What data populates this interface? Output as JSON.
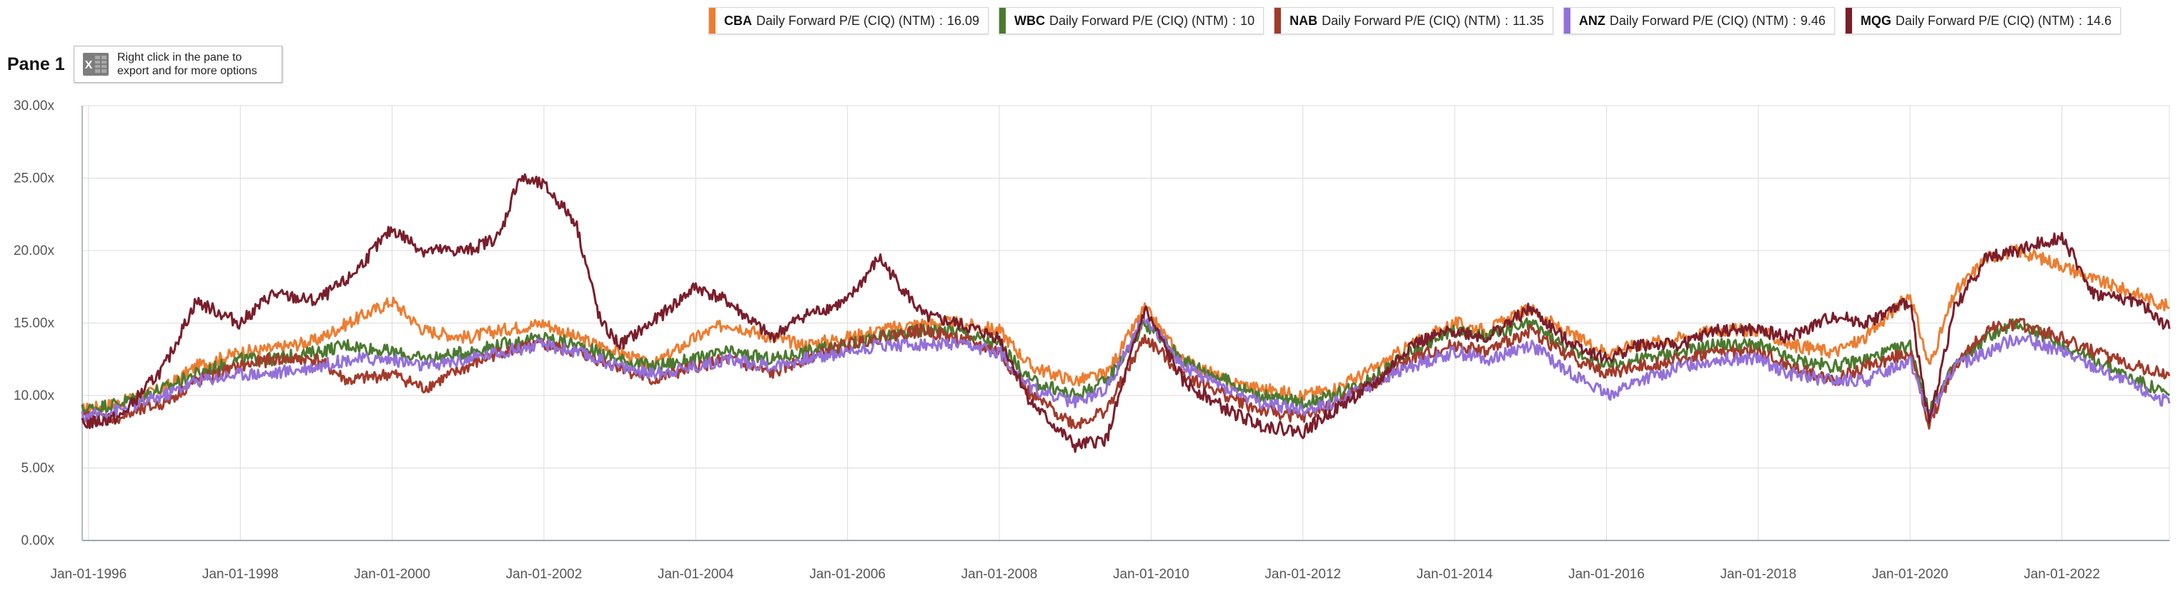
{
  "pane": {
    "title": "Pane 1",
    "export_hint_line1": "Right click in the pane to",
    "export_hint_line2": "export and for more options"
  },
  "legend": [
    {
      "code": "CBA",
      "desc": "Daily Forward P/E (CIQ) (NTM)",
      "value": "16.09",
      "color": "#ED7D31"
    },
    {
      "code": "WBC",
      "desc": "Daily Forward P/E (CIQ) (NTM)",
      "value": "10",
      "color": "#4A7A2E"
    },
    {
      "code": "NAB",
      "desc": "Daily Forward P/E (CIQ) (NTM)",
      "value": "11.35",
      "color": "#A33A2A"
    },
    {
      "code": "ANZ",
      "desc": "Daily Forward P/E (CIQ) (NTM)",
      "value": "9.46",
      "color": "#9370DB"
    },
    {
      "code": "MQG",
      "desc": "Daily Forward P/E (CIQ) (NTM)",
      "value": "14.6",
      "color": "#7A1E2B"
    }
  ],
  "chart_data": {
    "type": "line",
    "title": "",
    "xlabel": "",
    "ylabel": "",
    "ylim": [
      0,
      30
    ],
    "yticks": [
      "0.00x",
      "5.00x",
      "10.00x",
      "15.00x",
      "20.00x",
      "25.00x",
      "30.00x"
    ],
    "xticks": [
      "Jan-01-1996",
      "Jan-01-1998",
      "Jan-01-2000",
      "Jan-01-2002",
      "Jan-01-2004",
      "Jan-01-2006",
      "Jan-01-2008",
      "Jan-01-2010",
      "Jan-01-2012",
      "Jan-01-2014",
      "Jan-01-2016",
      "Jan-01-2018",
      "Jan-01-2020",
      "Jan-01-2022"
    ],
    "xlim": [
      "1995-12",
      "2023-06"
    ],
    "grid": true,
    "legend_position": "top-right",
    "series": [
      {
        "name": "CBA",
        "color": "#ED7D31",
        "x": [
          "1995-12",
          "1996-06",
          "1997-01",
          "1997-06",
          "1998-01",
          "1998-06",
          "1999-01",
          "1999-06",
          "2000-01",
          "2000-06",
          "2001-01",
          "2001-06",
          "2002-01",
          "2002-06",
          "2003-01",
          "2003-06",
          "2004-01",
          "2004-06",
          "2005-01",
          "2005-06",
          "2006-01",
          "2006-06",
          "2007-01",
          "2007-06",
          "2008-01",
          "2008-06",
          "2009-01",
          "2009-06",
          "2009-12",
          "2010-06",
          "2011-01",
          "2011-06",
          "2012-01",
          "2012-06",
          "2013-01",
          "2013-06",
          "2014-01",
          "2014-06",
          "2015-01",
          "2015-06",
          "2016-01",
          "2016-06",
          "2017-01",
          "2017-06",
          "2018-01",
          "2018-06",
          "2019-01",
          "2019-06",
          "2020-01",
          "2020-04",
          "2020-08",
          "2021-01",
          "2021-06",
          "2022-01",
          "2022-06",
          "2023-01",
          "2023-06"
        ],
        "y": [
          9.0,
          9.5,
          10.5,
          12.0,
          13.0,
          13.2,
          13.8,
          15.0,
          16.5,
          14.5,
          14.0,
          14.5,
          15.0,
          14.0,
          13.0,
          12.0,
          14.0,
          15.0,
          14.0,
          13.5,
          14.0,
          14.5,
          15.0,
          15.0,
          14.5,
          12.0,
          11.0,
          11.5,
          16.0,
          12.5,
          11.0,
          10.5,
          10.0,
          10.5,
          12.0,
          13.5,
          15.0,
          14.5,
          16.0,
          14.5,
          13.0,
          13.5,
          14.0,
          14.5,
          14.5,
          13.5,
          13.0,
          14.0,
          17.0,
          12.0,
          17.0,
          19.5,
          20.0,
          19.0,
          18.0,
          17.0,
          16.09
        ]
      },
      {
        "name": "WBC",
        "color": "#4A7A2E",
        "x": [
          "1995-12",
          "1996-06",
          "1997-01",
          "1997-06",
          "1998-01",
          "1998-06",
          "1999-01",
          "1999-06",
          "2000-01",
          "2000-06",
          "2001-01",
          "2001-06",
          "2002-01",
          "2002-06",
          "2003-01",
          "2003-06",
          "2004-01",
          "2004-06",
          "2005-01",
          "2005-06",
          "2006-01",
          "2006-06",
          "2007-01",
          "2007-06",
          "2008-01",
          "2008-06",
          "2009-01",
          "2009-06",
          "2009-12",
          "2010-06",
          "2011-01",
          "2011-06",
          "2012-01",
          "2012-06",
          "2013-01",
          "2013-06",
          "2014-01",
          "2014-06",
          "2015-01",
          "2015-06",
          "2016-01",
          "2016-06",
          "2017-01",
          "2017-06",
          "2018-01",
          "2018-06",
          "2019-01",
          "2019-06",
          "2020-01",
          "2020-04",
          "2020-08",
          "2021-01",
          "2021-06",
          "2022-01",
          "2022-06",
          "2023-01",
          "2023-06"
        ],
        "y": [
          9.0,
          9.5,
          10.5,
          11.5,
          12.5,
          12.5,
          13.0,
          13.5,
          13.0,
          12.5,
          13.0,
          13.5,
          14.0,
          13.5,
          12.5,
          12.0,
          12.5,
          13.0,
          12.5,
          13.0,
          13.5,
          14.0,
          14.5,
          14.5,
          13.5,
          11.0,
          10.0,
          11.0,
          15.0,
          12.5,
          11.0,
          10.0,
          9.5,
          10.0,
          11.5,
          13.0,
          14.5,
          14.0,
          15.0,
          13.5,
          12.0,
          12.5,
          13.0,
          13.5,
          13.5,
          12.5,
          12.0,
          12.5,
          13.5,
          9.0,
          12.0,
          14.0,
          15.0,
          13.5,
          12.5,
          11.0,
          10.0
        ]
      },
      {
        "name": "NAB",
        "color": "#A33A2A",
        "x": [
          "1995-12",
          "1996-06",
          "1997-01",
          "1997-06",
          "1998-01",
          "1998-06",
          "1999-01",
          "1999-06",
          "2000-01",
          "2000-06",
          "2001-01",
          "2001-06",
          "2002-01",
          "2002-06",
          "2003-01",
          "2003-06",
          "2004-01",
          "2004-06",
          "2005-01",
          "2005-06",
          "2006-01",
          "2006-06",
          "2007-01",
          "2007-06",
          "2008-01",
          "2008-06",
          "2009-01",
          "2009-06",
          "2009-12",
          "2010-06",
          "2011-01",
          "2011-06",
          "2012-01",
          "2012-06",
          "2013-01",
          "2013-06",
          "2014-01",
          "2014-06",
          "2015-01",
          "2015-06",
          "2016-01",
          "2016-06",
          "2017-01",
          "2017-06",
          "2018-01",
          "2018-06",
          "2019-01",
          "2019-06",
          "2020-01",
          "2020-04",
          "2020-08",
          "2021-01",
          "2021-06",
          "2022-01",
          "2022-06",
          "2023-01",
          "2023-06"
        ],
        "y": [
          8.5,
          8.5,
          9.5,
          11.0,
          12.0,
          12.5,
          12.5,
          11.0,
          11.5,
          10.5,
          12.0,
          13.0,
          13.5,
          13.0,
          12.0,
          11.0,
          12.0,
          12.5,
          11.5,
          12.5,
          13.5,
          14.0,
          14.5,
          14.0,
          13.0,
          10.0,
          8.0,
          9.0,
          14.0,
          11.5,
          10.0,
          9.0,
          8.5,
          9.5,
          11.0,
          12.5,
          13.5,
          13.0,
          14.5,
          13.0,
          11.5,
          12.0,
          12.5,
          13.0,
          13.0,
          12.0,
          11.0,
          12.0,
          13.0,
          8.0,
          12.0,
          14.5,
          15.0,
          14.0,
          13.0,
          12.0,
          11.35
        ]
      },
      {
        "name": "ANZ",
        "color": "#9370DB",
        "x": [
          "1995-12",
          "1996-06",
          "1997-01",
          "1997-06",
          "1998-01",
          "1998-06",
          "1999-01",
          "1999-06",
          "2000-01",
          "2000-06",
          "2001-01",
          "2001-06",
          "2002-01",
          "2002-06",
          "2003-01",
          "2003-06",
          "2004-01",
          "2004-06",
          "2005-01",
          "2005-06",
          "2006-01",
          "2006-06",
          "2007-01",
          "2007-06",
          "2008-01",
          "2008-06",
          "2009-01",
          "2009-06",
          "2009-12",
          "2010-06",
          "2011-01",
          "2011-06",
          "2012-01",
          "2012-06",
          "2013-01",
          "2013-06",
          "2014-01",
          "2014-06",
          "2015-01",
          "2015-06",
          "2016-01",
          "2016-06",
          "2017-01",
          "2017-06",
          "2018-01",
          "2018-06",
          "2019-01",
          "2019-06",
          "2020-01",
          "2020-04",
          "2020-08",
          "2021-01",
          "2021-06",
          "2022-01",
          "2022-06",
          "2023-01",
          "2023-06"
        ],
        "y": [
          8.5,
          9.0,
          10.0,
          11.0,
          11.5,
          11.5,
          12.0,
          12.5,
          12.5,
          12.0,
          12.5,
          13.0,
          13.5,
          13.0,
          12.0,
          11.5,
          12.0,
          12.5,
          12.0,
          12.5,
          13.0,
          13.5,
          13.5,
          13.5,
          13.0,
          10.5,
          9.5,
          10.5,
          15.5,
          12.0,
          10.5,
          9.5,
          9.0,
          9.5,
          11.0,
          12.0,
          13.0,
          12.5,
          13.5,
          12.0,
          10.0,
          11.0,
          12.0,
          12.5,
          12.5,
          11.5,
          11.0,
          11.0,
          12.5,
          8.5,
          12.0,
          13.0,
          14.0,
          13.0,
          12.0,
          10.5,
          9.46
        ]
      },
      {
        "name": "MQG",
        "color": "#7A1E2B",
        "x": [
          "1995-12",
          "1996-06",
          "1997-01",
          "1997-06",
          "1998-01",
          "1998-06",
          "1999-01",
          "1999-06",
          "2000-01",
          "2000-06",
          "2001-01",
          "2001-06",
          "2001-09",
          "2002-01",
          "2002-06",
          "2002-10",
          "2003-01",
          "2003-06",
          "2004-01",
          "2004-06",
          "2005-01",
          "2005-06",
          "2006-01",
          "2006-06",
          "2007-01",
          "2007-06",
          "2008-01",
          "2008-06",
          "2009-01",
          "2009-06",
          "2009-12",
          "2010-06",
          "2011-01",
          "2011-06",
          "2012-01",
          "2012-06",
          "2013-01",
          "2013-06",
          "2014-01",
          "2014-06",
          "2015-01",
          "2015-06",
          "2016-01",
          "2016-06",
          "2017-01",
          "2017-06",
          "2018-01",
          "2018-06",
          "2019-01",
          "2019-06",
          "2020-01",
          "2020-04",
          "2020-08",
          "2021-01",
          "2021-06",
          "2022-01",
          "2022-06",
          "2023-01",
          "2023-06"
        ],
        "y": [
          8.0,
          8.5,
          12.0,
          16.5,
          15.0,
          17.0,
          16.5,
          18.0,
          21.5,
          20.0,
          20.0,
          21.0,
          25.0,
          24.5,
          22.0,
          15.0,
          13.5,
          15.0,
          17.5,
          16.5,
          14.0,
          15.5,
          16.5,
          19.5,
          15.5,
          15.0,
          14.0,
          9.5,
          6.5,
          7.0,
          16.0,
          11.0,
          9.0,
          8.0,
          7.5,
          9.0,
          11.0,
          13.5,
          14.5,
          14.0,
          16.0,
          14.0,
          12.5,
          13.5,
          13.5,
          14.5,
          14.5,
          14.0,
          15.5,
          15.0,
          16.5,
          8.0,
          16.0,
          19.5,
          20.0,
          21.0,
          17.0,
          16.5,
          14.6
        ]
      }
    ]
  }
}
